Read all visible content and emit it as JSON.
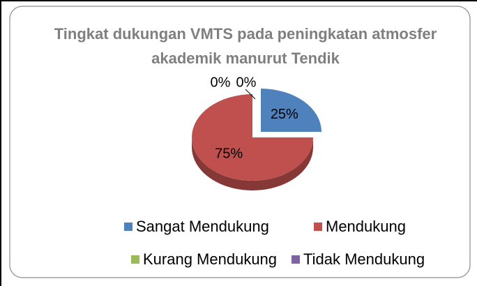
{
  "chart_data": {
    "type": "pie",
    "title": "Tingkat dukungan VMTS pada peningkatan atmosfer akademik manurut Tendik",
    "categories": [
      "Sangat Mendukung",
      "Mendukung",
      "Kurang Mendukung",
      "Tidak Mendukung"
    ],
    "values": [
      25,
      75,
      0,
      0
    ],
    "value_labels": [
      "25%",
      "75%",
      "0%",
      "0%"
    ],
    "colors": [
      "#4f81bd",
      "#c0504d",
      "#9bbb59",
      "#8064a2"
    ],
    "legend": "bottom"
  }
}
